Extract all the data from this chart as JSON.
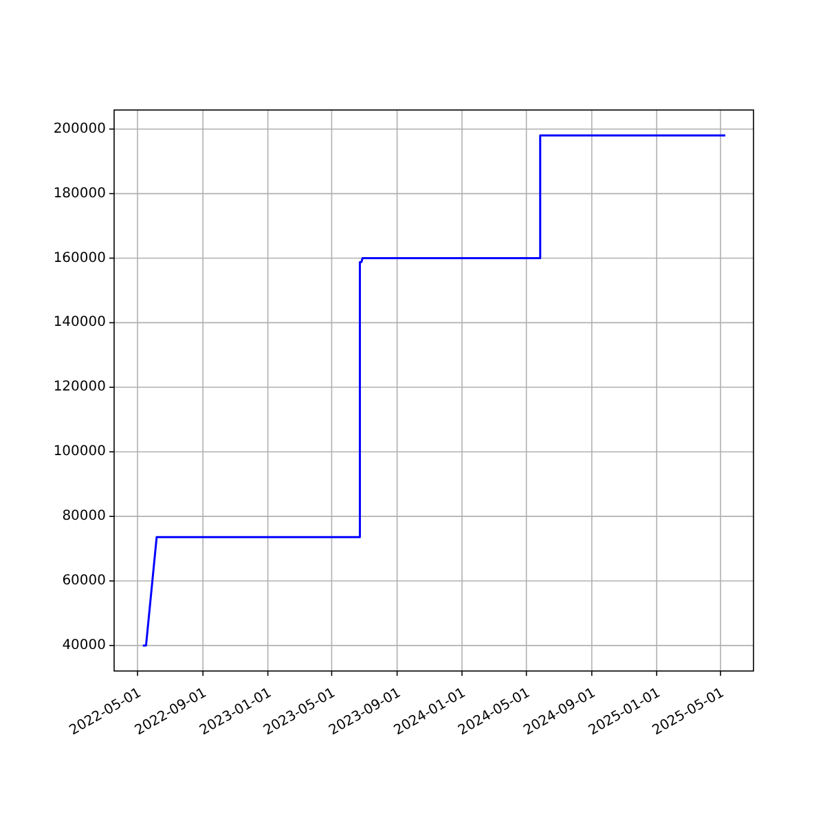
{
  "chart_data": {
    "type": "line",
    "x": [
      "2022-05-11",
      "2022-05-17",
      "2022-06-06",
      "2023-06-23",
      "2023-06-23",
      "2023-06-26",
      "2023-06-28",
      "2024-05-27",
      "2024-05-27",
      "2025-05-10"
    ],
    "series": [
      {
        "color": "#0000ff",
        "values": [
          40000,
          40000,
          73600,
          73600,
          158800,
          158800,
          160000,
          160000,
          198000,
          198000
        ]
      }
    ],
    "xlim": [
      "2022-03-18",
      "2025-07-02"
    ],
    "xticks": [
      "2022-05-01",
      "2022-09-01",
      "2023-01-01",
      "2023-05-01",
      "2023-09-01",
      "2024-01-01",
      "2024-05-01",
      "2024-09-01",
      "2025-01-01",
      "2025-05-01"
    ],
    "ylim": [
      32100,
      205900
    ],
    "yticks": [
      40000,
      60000,
      80000,
      100000,
      120000,
      140000,
      160000,
      180000,
      200000
    ],
    "grid": true,
    "marker": "none",
    "line_style": "solid"
  }
}
